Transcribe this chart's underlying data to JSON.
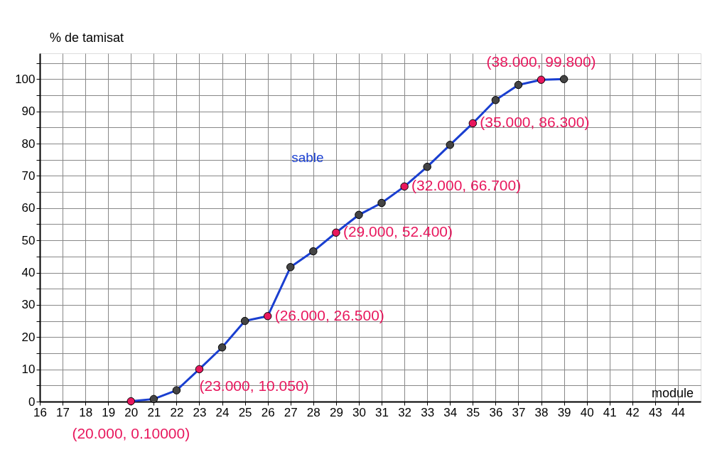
{
  "chart_data": {
    "type": "line",
    "xlabel": "module",
    "ylabel": "% de tamisat",
    "x": [
      20,
      21,
      22,
      23,
      24,
      25,
      26,
      27,
      28,
      29,
      30,
      31,
      32,
      33,
      34,
      35,
      36,
      37,
      38,
      39
    ],
    "series": [
      {
        "name": "sable",
        "color": "#1a3fd0",
        "values": [
          0.1,
          0.8,
          3.5,
          10.05,
          16.8,
          25,
          26.5,
          41.7,
          46.6,
          52.4,
          57.9,
          61.6,
          66.7,
          72.8,
          79.6,
          86.3,
          93.5,
          98.2,
          99.8,
          100
        ]
      }
    ],
    "marker": "circle",
    "xlim": [
      16,
      45
    ],
    "ylim": [
      0,
      108
    ],
    "xticks": [
      16,
      17,
      18,
      19,
      20,
      21,
      22,
      23,
      24,
      25,
      26,
      27,
      28,
      29,
      30,
      31,
      32,
      33,
      34,
      35,
      36,
      37,
      38,
      39,
      40,
      41,
      42,
      43,
      44
    ],
    "yticks": [
      0,
      {
        "value": 5,
        "label": null
      },
      10,
      {
        "value": 15,
        "label": null
      },
      20,
      {
        "value": 25,
        "label": null
      },
      30,
      {
        "value": 35,
        "label": null
      },
      40,
      {
        "value": 45,
        "label": null
      },
      50,
      {
        "value": 55,
        "label": null
      },
      60,
      {
        "value": 65,
        "label": null
      },
      70,
      {
        "value": 75,
        "label": null
      },
      80,
      {
        "value": 85,
        "label": null
      },
      90,
      {
        "value": 95,
        "label": null
      },
      100,
      {
        "value": 105,
        "label": null
      }
    ],
    "grid": true,
    "annotations": [
      {
        "text": "(20.000, 0.10000)",
        "x": 20,
        "y": 0.1
      },
      {
        "text": "(23.000, 10.050)",
        "x": 23,
        "y": 10.05
      },
      {
        "text": "(26.000, 26.500)",
        "x": 26,
        "y": 26.5
      },
      {
        "text": "(29.000, 52.400)",
        "x": 29,
        "y": 52.4
      },
      {
        "text": "(32.000, 66.700)",
        "x": 32,
        "y": 66.7
      },
      {
        "text": "(35.000, 86.300)",
        "x": 35,
        "y": 86.3
      },
      {
        "text": "(38.000, 99.800)",
        "x": 38,
        "y": 99.8
      }
    ]
  }
}
